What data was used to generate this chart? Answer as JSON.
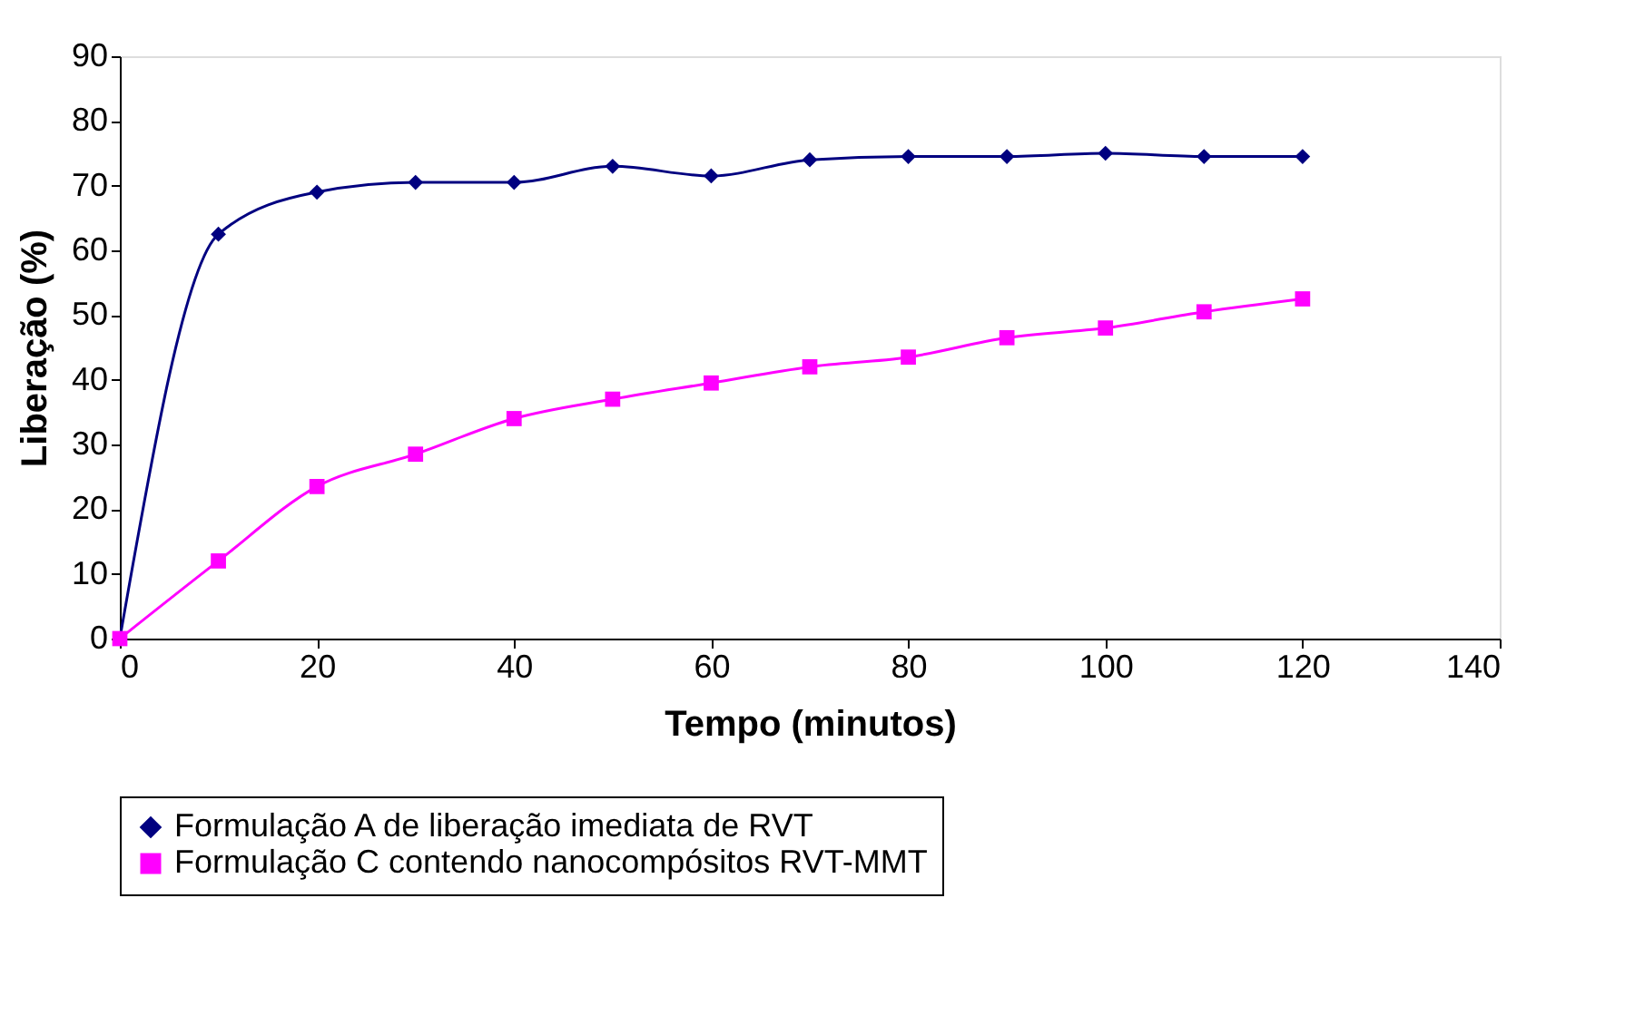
{
  "chart_data": {
    "type": "line",
    "xlabel": "Tempo (minutos)",
    "ylabel": "Liberação (%)",
    "xlim": [
      0,
      140
    ],
    "xticks": [
      0,
      20,
      40,
      60,
      80,
      100,
      120,
      140
    ],
    "ylim": [
      0,
      90
    ],
    "yticks": [
      0,
      10,
      20,
      30,
      40,
      50,
      60,
      70,
      80,
      90
    ],
    "grid": false,
    "legend": "bottom",
    "line_style": "solid",
    "x": [
      0,
      10,
      20,
      30,
      40,
      50,
      60,
      70,
      80,
      90,
      100,
      110,
      120
    ],
    "series": [
      {
        "name": "Formulação A de liberação imediata de RVT",
        "color": "#000080",
        "marker": "diamond",
        "values": [
          0,
          62.5,
          69,
          70.5,
          70.5,
          73,
          71.5,
          74,
          74.5,
          74.5,
          75,
          74.5,
          74.5
        ]
      },
      {
        "name": "Formulação C contendo nanocompósitos RVT-MMT",
        "color": "#ff00ff",
        "marker": "square",
        "values": [
          0,
          12,
          23.5,
          28.5,
          34,
          37,
          39.5,
          42,
          43.5,
          46.5,
          48,
          50.5,
          52.5
        ]
      }
    ]
  }
}
